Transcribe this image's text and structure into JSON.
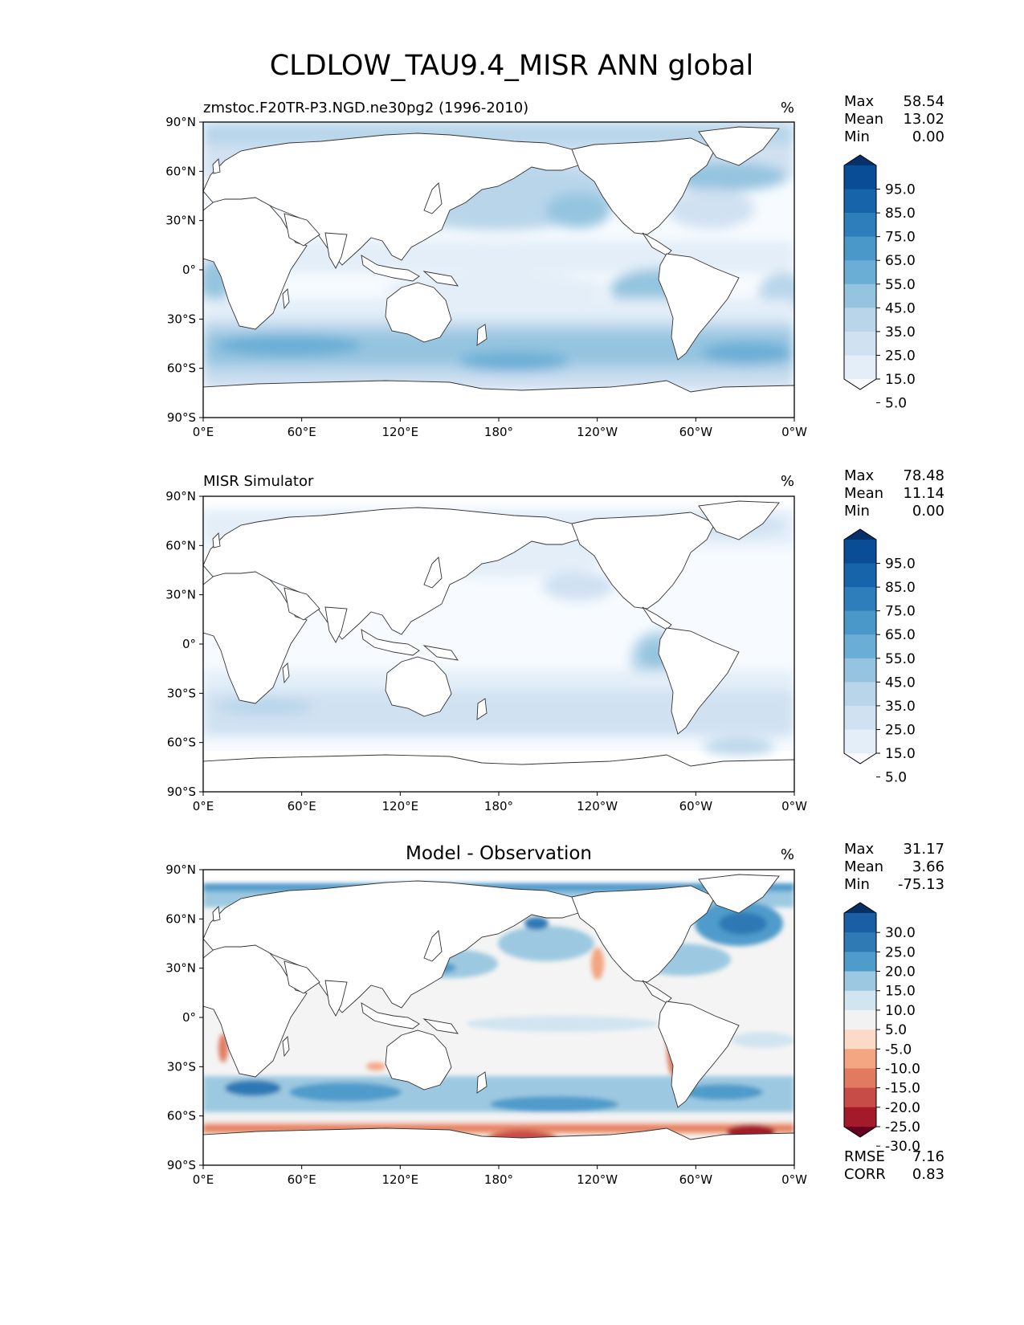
{
  "figure": {
    "title": "CLDLOW_TAU9.4_MISR ANN global"
  },
  "axes": {
    "lat_ticks": [
      "90°N",
      "60°N",
      "30°N",
      "0°",
      "30°S",
      "60°S",
      "90°S"
    ],
    "lon_ticks": [
      "0°E",
      "60°E",
      "120°E",
      "180°",
      "120°W",
      "60°W",
      "0°W"
    ]
  },
  "panels": [
    {
      "id": "model",
      "left_title": "zmstoc.F20TR-P3.NGD.ne30pg2 (1996-2010)",
      "center_title": "",
      "units": "%",
      "stats": [
        {
          "label": "Max",
          "value": "58.54"
        },
        {
          "label": "Mean",
          "value": "13.02"
        },
        {
          "label": "Min",
          "value": "0.00"
        }
      ],
      "colorbar": {
        "ticks": [
          "95.0",
          "85.0",
          "75.0",
          "65.0",
          "55.0",
          "45.0",
          "35.0",
          "25.0",
          "15.0",
          "5.0"
        ],
        "colors": [
          "#08306b",
          "#084d96",
          "#1864aa",
          "#2f7ebc",
          "#4a98c9",
          "#6aaed6",
          "#94c4df",
          "#b8d5ea",
          "#d0e1f2",
          "#e3eef8",
          "#f7fbff"
        ]
      }
    },
    {
      "id": "obs",
      "left_title": "MISR Simulator",
      "center_title": "",
      "units": "%",
      "stats": [
        {
          "label": "Max",
          "value": "78.48"
        },
        {
          "label": "Mean",
          "value": "11.14"
        },
        {
          "label": "Min",
          "value": "0.00"
        }
      ],
      "colorbar": {
        "ticks": [
          "95.0",
          "85.0",
          "75.0",
          "65.0",
          "55.0",
          "45.0",
          "35.0",
          "25.0",
          "15.0",
          "5.0"
        ],
        "colors": [
          "#08306b",
          "#084d96",
          "#1864aa",
          "#2f7ebc",
          "#4a98c9",
          "#6aaed6",
          "#94c4df",
          "#b8d5ea",
          "#d0e1f2",
          "#e3eef8",
          "#f7fbff"
        ]
      }
    },
    {
      "id": "diff",
      "left_title": "",
      "center_title": "Model - Observation",
      "units": "%",
      "stats": [
        {
          "label": "Max",
          "value": "31.17"
        },
        {
          "label": "Mean",
          "value": "3.66"
        },
        {
          "label": "Min",
          "value": "-75.13"
        }
      ],
      "bottom_stats": [
        {
          "label": "RMSE",
          "value": "7.16"
        },
        {
          "label": "CORR",
          "value": "0.83"
        }
      ],
      "colorbar": {
        "ticks": [
          "30.0",
          "25.0",
          "20.0",
          "15.0",
          "10.0",
          "5.0",
          "-5.0",
          "-10.0",
          "-15.0",
          "-20.0",
          "-25.0",
          "-30.0"
        ],
        "colors": [
          "#053061",
          "#1a5fa3",
          "#2f79b5",
          "#4f9bcb",
          "#9cc9e1",
          "#d1e5f0",
          "#f2f2f2",
          "#fbdbc8",
          "#f4a582",
          "#e07b61",
          "#c74b46",
          "#a31a2b",
          "#67001f"
        ]
      }
    }
  ]
}
